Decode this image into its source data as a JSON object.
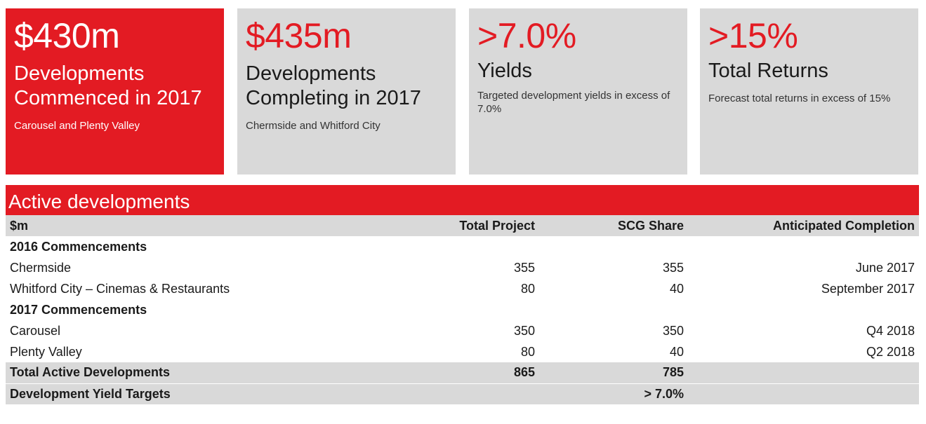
{
  "cards": [
    {
      "big": "$430m",
      "title_lines": [
        "Developments",
        "Commenced in 2017"
      ],
      "sub": "Carousel and Plenty Valley"
    },
    {
      "big": "$435m",
      "title_lines": [
        "Developments",
        "Completing in 2017"
      ],
      "sub": "Chermside and Whitford City"
    },
    {
      "big": ">7.0%",
      "title": "Yields",
      "sub": "Targeted development yields in excess of 7.0%"
    },
    {
      "big": ">15%",
      "title": "Total Returns",
      "sub": "Forecast total returns in excess of 15%"
    }
  ],
  "table": {
    "banner": "Active developments",
    "headers": [
      "$m",
      "Total Project",
      "SCG Share",
      "Anticipated Completion"
    ],
    "sections": [
      {
        "label": "2016 Commencements",
        "rows": [
          {
            "name": "Chermside",
            "total": "355",
            "scg": "355",
            "completion": "June 2017"
          },
          {
            "name": "Whitford City – Cinemas & Restaurants",
            "total": "80",
            "scg": "40",
            "completion": "September 2017"
          }
        ]
      },
      {
        "label": "2017 Commencements",
        "rows": [
          {
            "name": "Carousel",
            "total": "350",
            "scg": "350",
            "completion": "Q4 2018"
          },
          {
            "name": "Plenty Valley",
            "total": "80",
            "scg": "40",
            "completion": "Q2 2018"
          }
        ]
      }
    ],
    "totals": [
      {
        "name": "Total Active Developments",
        "total": "865",
        "scg": "785",
        "completion": ""
      },
      {
        "name": "Development Yield Targets",
        "total": "",
        "scg": "> 7.0%",
        "completion": ""
      }
    ]
  },
  "colors": {
    "accent": "#e31b23",
    "panel": "#d9d9d9"
  }
}
